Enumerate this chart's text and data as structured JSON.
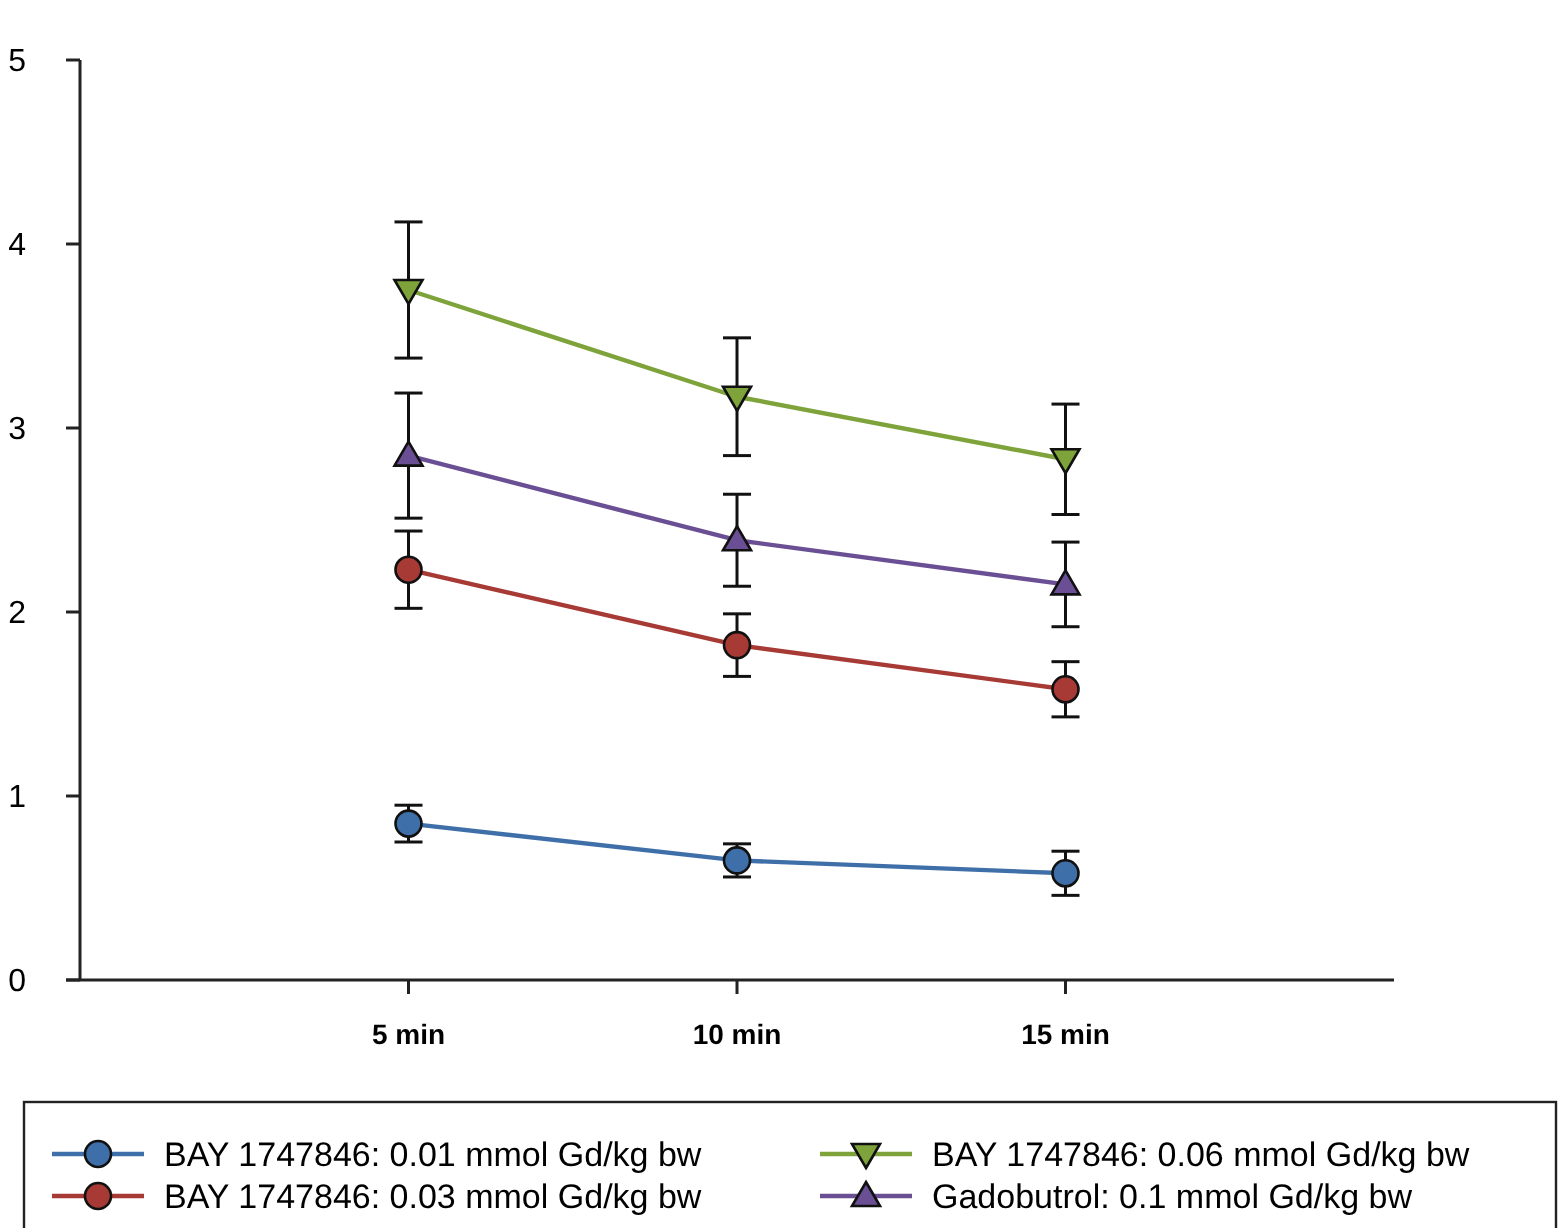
{
  "chart_data": {
    "type": "line",
    "categories": [
      "5 min",
      "10 min",
      "15 min"
    ],
    "ylim": [
      0,
      5
    ],
    "yticks": [
      0,
      1,
      2,
      3,
      4,
      5
    ],
    "grid": false,
    "legend": "bottom",
    "series": [
      {
        "name": "BAY 1747846: 0.01 mmol Gd/kg bw",
        "color": "#3f6fa8",
        "marker": "circle",
        "values": [
          0.85,
          0.65,
          0.58
        ],
        "errors": [
          0.1,
          0.09,
          0.12
        ]
      },
      {
        "name": "BAY 1747846: 0.03 mmol Gd/kg bw",
        "color": "#a83a36",
        "marker": "circle",
        "values": [
          2.23,
          1.82,
          1.58
        ],
        "errors": [
          0.21,
          0.17,
          0.15
        ]
      },
      {
        "name": "BAY 1747846: 0.06 mmol Gd/kg bw",
        "color": "#7ea33a",
        "marker": "triangle-down",
        "values": [
          3.75,
          3.17,
          2.83
        ],
        "errors": [
          0.37,
          0.32,
          0.3
        ]
      },
      {
        "name": "Gadobutrol: 0.1 mmol Gd/kg bw",
        "color": "#6a4f94",
        "marker": "triangle",
        "values": [
          2.85,
          2.39,
          2.15
        ],
        "errors": [
          0.34,
          0.25,
          0.23
        ]
      }
    ]
  }
}
